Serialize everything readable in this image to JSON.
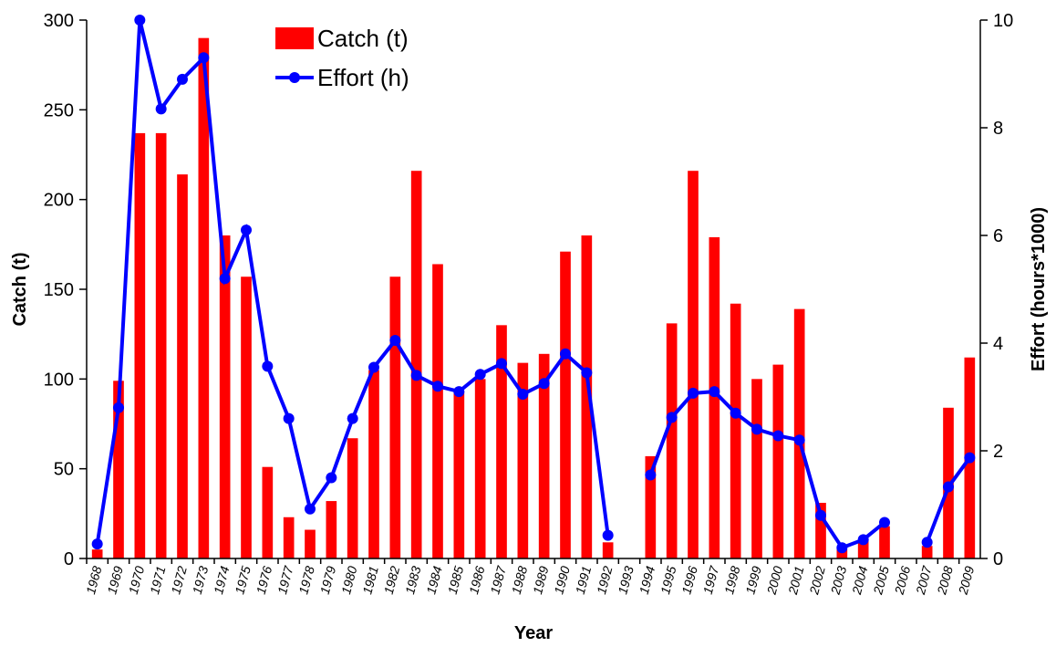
{
  "chart_data": {
    "type": "bar_line",
    "x_label": "Year",
    "y_label": "Catch (t)",
    "y2_label": "Effort (hours*1000)",
    "categories": [
      "1968",
      "1969",
      "1970",
      "1971",
      "1972",
      "1973",
      "1974",
      "1975",
      "1976",
      "1977",
      "1978",
      "1979",
      "1980",
      "1981",
      "1982",
      "1983",
      "1984",
      "1985",
      "1986",
      "1987",
      "1988",
      "1989",
      "1990",
      "1991",
      "1992",
      "1993",
      "1994",
      "1995",
      "1996",
      "1997",
      "1998",
      "1999",
      "2000",
      "2001",
      "2002",
      "2003",
      "2004",
      "2005",
      "2006",
      "2007",
      "2008",
      "2009"
    ],
    "series": [
      {
        "name": "Catch (t)",
        "type": "bar",
        "color": "#ff0000",
        "values": [
          5,
          99,
          237,
          237,
          214,
          290,
          180,
          157,
          51,
          23,
          16,
          32,
          67,
          105,
          157,
          216,
          164,
          93,
          100,
          130,
          109,
          114,
          171,
          180,
          9,
          null,
          57,
          131,
          216,
          179,
          142,
          100,
          108,
          139,
          31,
          5,
          10,
          18,
          null,
          7,
          84,
          112
        ]
      },
      {
        "name": "Effort (h)",
        "type": "line",
        "axis": "y2",
        "color": "#0000ff",
        "values": [
          0.27,
          2.8,
          10.0,
          8.35,
          8.9,
          9.3,
          5.2,
          6.1,
          3.57,
          2.6,
          0.92,
          1.5,
          2.6,
          3.55,
          4.05,
          3.4,
          3.2,
          3.1,
          3.42,
          3.62,
          3.05,
          3.25,
          3.8,
          3.45,
          0.43,
          null,
          1.55,
          2.62,
          3.07,
          3.1,
          2.7,
          2.4,
          2.28,
          2.2,
          0.8,
          0.2,
          0.35,
          0.67,
          null,
          0.3,
          1.33,
          1.87
        ]
      }
    ],
    "ylim": [
      0,
      300
    ],
    "yticks": [
      0,
      50,
      100,
      150,
      200,
      250,
      300
    ],
    "y2lim": [
      0,
      10
    ],
    "y2ticks": [
      0,
      2,
      4,
      6,
      8,
      10
    ],
    "grid": false
  }
}
